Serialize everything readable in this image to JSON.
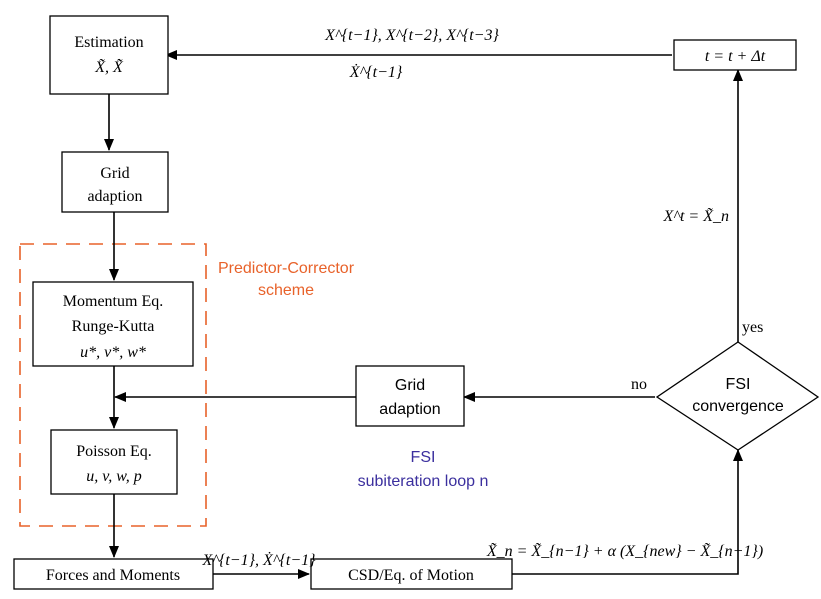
{
  "nodes": {
    "estimation": {
      "title": "Estimation",
      "vars": "X̃, X̃̇"
    },
    "grid_top": {
      "line1": "Grid",
      "line2": "adaption"
    },
    "momentum": {
      "line1": "Momentum Eq.",
      "line2": "Runge-Kutta",
      "vars": "u*, v*, w*"
    },
    "poisson": {
      "line1": "Poisson Eq.",
      "vars": "u, v, w, p"
    },
    "forces": {
      "label": "Forces and Moments"
    },
    "csd": {
      "label": "CSD/Eq. of Motion"
    },
    "grid_mid": {
      "line1": "Grid",
      "line2": "adaption"
    },
    "fsi": {
      "line1": "FSI",
      "line2": "convergence"
    },
    "time": {
      "label": "t = t + Δt"
    }
  },
  "annotations": {
    "pc_scheme_line1": "Predictor-Corrector",
    "pc_scheme_line2": "scheme",
    "fsi_loop_line1": "FSI",
    "fsi_loop_line2": "subiteration loop n",
    "history_x": "X^{t−1}, X^{t−2}, X^{t−3}",
    "history_xdot": "Ẋ^{t−1}",
    "xt_update": "X^t = X̃_n",
    "yes": "yes",
    "no": "no",
    "forces_to_csd": "X^{t−1}, Ẋ^{t−1}",
    "relaxation": "X̃_n = X̃_{n−1} + α (X_{new} − X̃_{n−1})"
  },
  "colors": {
    "pc_scheme": "#e8622a",
    "fsi_loop": "#3b2f9e",
    "lines": "#000000"
  }
}
